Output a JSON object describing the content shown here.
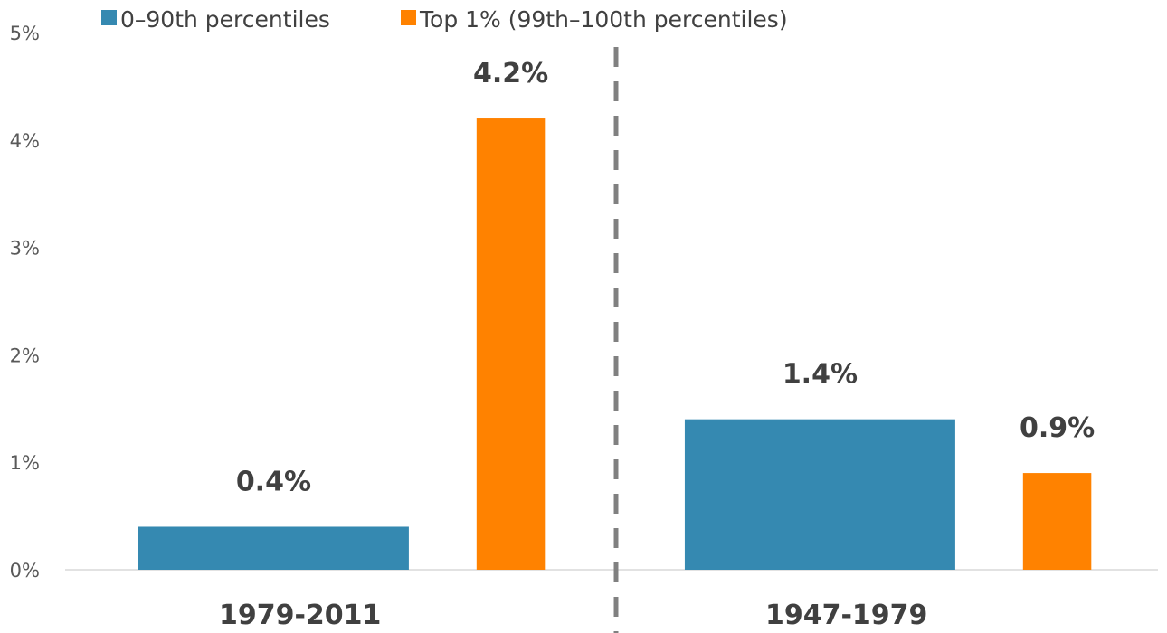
{
  "chart_data": {
    "type": "bar",
    "categories": [
      "1979-2011",
      "1947-1979"
    ],
    "series": [
      {
        "name": "0–90th percentiles",
        "values": [
          0.4,
          1.4
        ],
        "labels": [
          "0.4%",
          "1.4%"
        ],
        "color": "#3589B1"
      },
      {
        "name": "Top 1% (99th–100th percentiles)",
        "values": [
          4.2,
          0.9
        ],
        "labels": [
          "4.2%",
          "0.9%"
        ],
        "color": "#FF8200"
      }
    ],
    "yticks": [
      "0%",
      "1%",
      "2%",
      "3%",
      "4%",
      "5%"
    ],
    "ylim": [
      0,
      5
    ],
    "y_unit": "%",
    "legend_position": "top-left",
    "grid": false,
    "divider": "dashed vertical line between periods",
    "colors": {
      "axis": "#D9D9D9",
      "divider": "#808080",
      "text": "#404040",
      "tick": "#595959"
    }
  }
}
